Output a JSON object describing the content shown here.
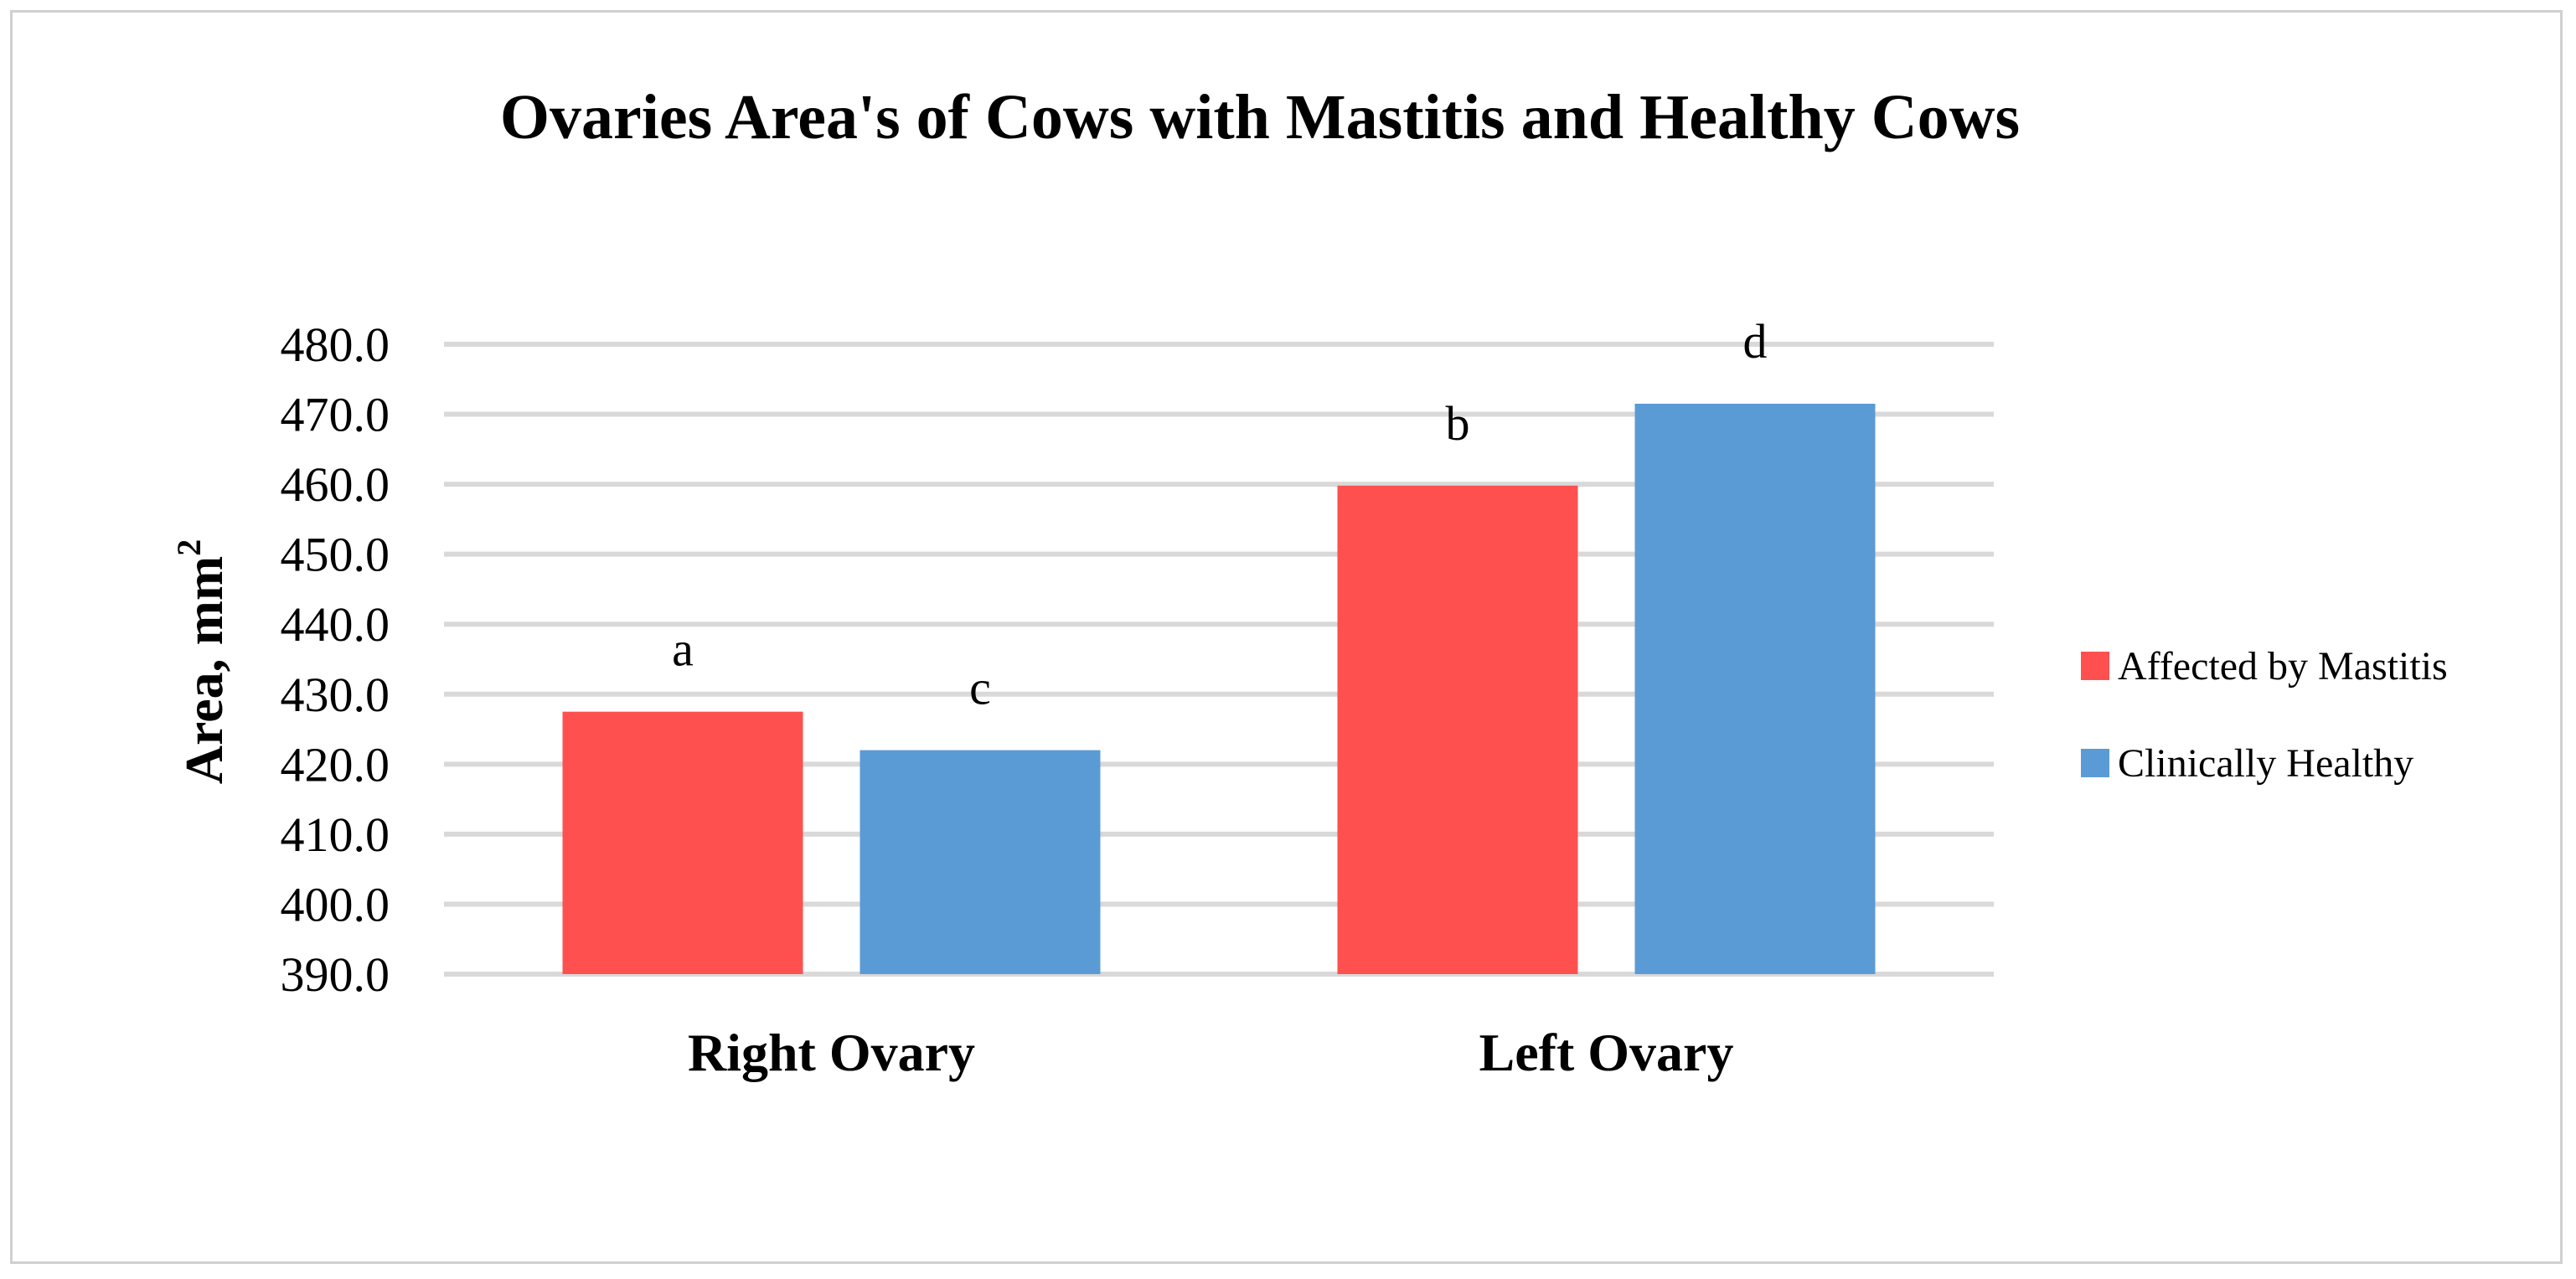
{
  "chart_data": {
    "type": "bar",
    "title": "Ovaries Area's of Cows with Mastitis and Healthy Cows",
    "ylabel": "Area, mm",
    "ylabel_superscript": "2",
    "xlabel": "",
    "categories": [
      "Right Ovary",
      "Left Ovary"
    ],
    "series": [
      {
        "name": "Affected by Mastitis",
        "color": "#ff5050",
        "values": [
          427.5,
          459.8
        ],
        "labels": [
          "a",
          "b"
        ]
      },
      {
        "name": "Clinically Healthy",
        "color": "#5b9bd5",
        "values": [
          422.0,
          471.5
        ],
        "labels": [
          "c",
          "d"
        ]
      }
    ],
    "ylim": [
      390.0,
      480.0
    ],
    "yticks": [
      "390.0",
      "400.0",
      "410.0",
      "420.0",
      "430.0",
      "440.0",
      "450.0",
      "460.0",
      "470.0",
      "480.0"
    ],
    "grid": true,
    "legend": "right"
  }
}
